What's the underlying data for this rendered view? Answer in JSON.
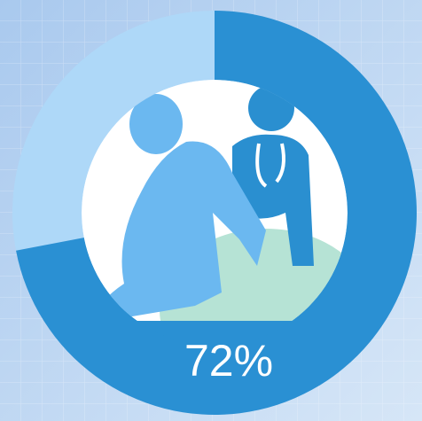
{
  "chart_data": {
    "type": "donut",
    "values": [
      72
    ],
    "value_labels": [
      "72%"
    ],
    "ylim": [
      0,
      100
    ],
    "color": "#2a90d3",
    "rest_color": "#aed8f8"
  }
}
